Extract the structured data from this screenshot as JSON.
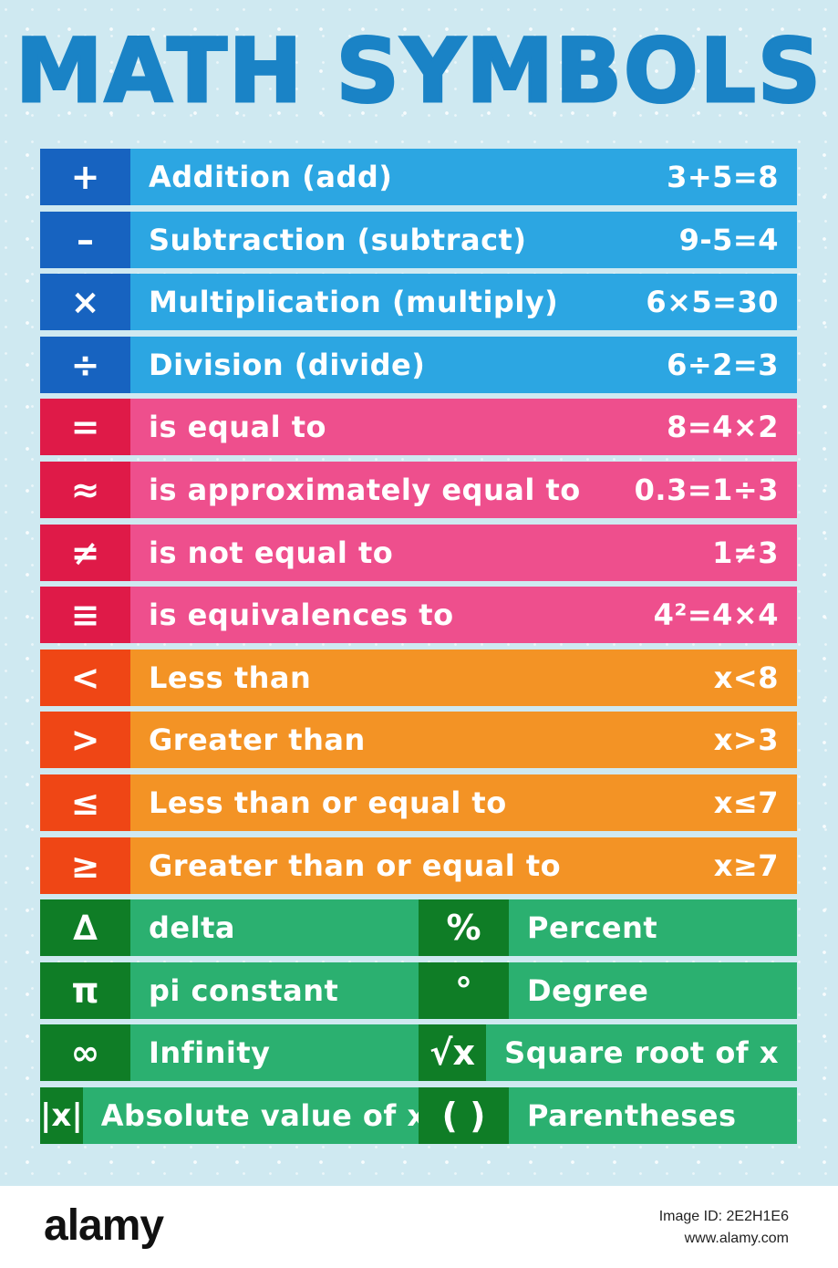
{
  "title": "MATH SYMBOLS",
  "colors": {
    "title": "#1a83c6",
    "background": "#cfe9f1",
    "blue_symbol": "#1763c0",
    "blue_body": "#2ca6e2",
    "pink_symbol": "#df1a48",
    "pink_body": "#ee4f8d",
    "orange_symbol": "#ef4615",
    "orange_body": "#f39325",
    "green_symbol": "#0f7d26",
    "green_body": "#2bb070"
  },
  "rows": [
    {
      "group": "blue",
      "symbol": "+",
      "name": "Addition (add)",
      "example": "3+5=8"
    },
    {
      "group": "blue",
      "symbol": "–",
      "name": "Subtraction (subtract)",
      "example": "9-5=4"
    },
    {
      "group": "blue",
      "symbol": "×",
      "name": "Multiplication (multiply)",
      "example": "6×5=30"
    },
    {
      "group": "blue",
      "symbol": "÷",
      "name": "Division (divide)",
      "example": "6÷2=3"
    },
    {
      "group": "pink",
      "symbol": "=",
      "name": "is equal to",
      "example": "8=4×2"
    },
    {
      "group": "pink",
      "symbol": "≈",
      "name": "is approximately equal to",
      "example": "0.3=1÷3"
    },
    {
      "group": "pink",
      "symbol": "≠",
      "name": "is not equal to",
      "example": "1≠3"
    },
    {
      "group": "pink",
      "symbol": "≡",
      "name": "is equivalences  to",
      "example": "4²=4×4"
    },
    {
      "group": "orange",
      "symbol": "<",
      "name": "Less than",
      "example": "x<8"
    },
    {
      "group": "orange",
      "symbol": ">",
      "name": "Greater than",
      "example": "x>3"
    },
    {
      "group": "orange",
      "symbol": "≤",
      "name": "Less than or equal to",
      "example": "x≤7"
    },
    {
      "group": "orange",
      "symbol": "≥",
      "name": "Greater than or equal to",
      "example": "x≥7"
    }
  ],
  "green_rows": [
    {
      "left": {
        "symbol": "∆",
        "name": "delta"
      },
      "right": {
        "symbol": "%",
        "name": "Percent"
      }
    },
    {
      "left": {
        "symbol": "π",
        "name": "pi constant"
      },
      "right": {
        "symbol": "°",
        "name": "Degree"
      }
    },
    {
      "left": {
        "symbol": "∞",
        "name": "Infinity"
      },
      "right": {
        "symbol": "√x",
        "name": "Square root of x"
      }
    },
    {
      "left": {
        "symbol": "|x|",
        "name": "Absolute value of x"
      },
      "right": {
        "symbol": "( )",
        "name": "Parentheses"
      }
    }
  ],
  "footer": {
    "logo": "alamy",
    "image_id": "Image ID: 2E2H1E6",
    "site": "www.alamy.com"
  }
}
